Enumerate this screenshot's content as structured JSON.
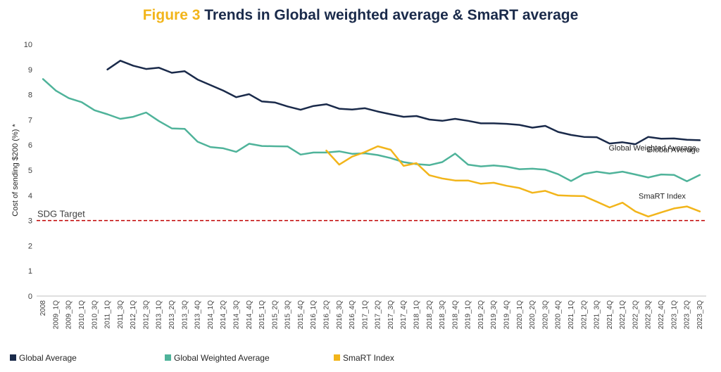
{
  "title": {
    "figure": "Figure 3",
    "text": "Trends in Global weighted average & SmaRT average"
  },
  "chart_data": {
    "type": "line",
    "ylabel": "Cost of sending $200 (%) *",
    "ylim": [
      0,
      10
    ],
    "y_ticks": [
      0,
      1,
      2,
      3,
      4,
      5,
      6,
      7,
      8,
      9,
      10
    ],
    "grid": false,
    "legend_position": "bottom",
    "categories": [
      "2008",
      "2009_1Q",
      "2009_3Q",
      "2010_1Q",
      "2010_3Q",
      "2011_1Q",
      "2011_3Q",
      "2012_1Q",
      "2012_3Q",
      "2013_1Q",
      "2013_2Q",
      "2013_3Q",
      "2013_4Q",
      "2014_1Q",
      "2014_2Q",
      "2014_3Q",
      "2014_4Q",
      "2015_1Q",
      "2015_2Q",
      "2015_3Q",
      "2015_4Q",
      "2016_1Q",
      "2016_2Q",
      "2016_3Q",
      "2016_4Q",
      "2017_1Q",
      "2017_2Q",
      "2017_3Q",
      "2017_4Q",
      "2018_1Q",
      "2018_2Q",
      "2018_3Q",
      "2018_4Q",
      "2019_1Q",
      "2019_2Q",
      "2019_3Q",
      "2019_4Q",
      "2020_1Q",
      "2020_2Q",
      "2020_3Q",
      "2020_4Q",
      "2021_1Q",
      "2021_2Q",
      "2021_3Q",
      "2021_4Q",
      "2022_1Q",
      "2022_2Q",
      "2022_3Q",
      "2022_4Q",
      "2023_1Q",
      "2023_2Q",
      "2023_3Q"
    ],
    "series": [
      {
        "name": "Global Average",
        "color": "#1a2a4a",
        "annotation": "Global Average",
        "values": [
          null,
          null,
          null,
          null,
          null,
          9.0,
          9.35,
          9.15,
          9.02,
          9.07,
          8.87,
          8.93,
          8.6,
          8.38,
          8.16,
          7.9,
          8.02,
          7.73,
          7.69,
          7.53,
          7.4,
          7.55,
          7.62,
          7.44,
          7.41,
          7.46,
          7.33,
          7.22,
          7.12,
          7.15,
          7.01,
          6.96,
          7.04,
          6.96,
          6.86,
          6.86,
          6.84,
          6.8,
          6.69,
          6.76,
          6.52,
          6.4,
          6.32,
          6.31,
          6.06,
          6.11,
          6.03,
          6.32,
          6.25,
          6.26,
          6.21,
          6.19
        ]
      },
      {
        "name": "Global Weighted Average",
        "color": "#4fb39a",
        "annotation": "Global Weighted Average",
        "values": [
          8.62,
          8.16,
          7.86,
          7.7,
          7.38,
          7.22,
          7.04,
          7.12,
          7.29,
          6.95,
          6.66,
          6.64,
          6.13,
          5.92,
          5.87,
          5.73,
          6.05,
          5.96,
          5.95,
          5.94,
          5.62,
          5.7,
          5.7,
          5.75,
          5.65,
          5.67,
          5.6,
          5.48,
          5.32,
          5.24,
          5.2,
          5.32,
          5.66,
          5.22,
          5.15,
          5.19,
          5.14,
          5.04,
          5.06,
          5.02,
          4.84,
          4.57,
          4.85,
          4.94,
          4.87,
          4.94,
          4.83,
          4.71,
          4.83,
          4.81,
          4.56,
          4.81
        ]
      },
      {
        "name": "SmaRT Index",
        "color": "#f2b51b",
        "annotation": "SmaRT Index",
        "values": [
          null,
          null,
          null,
          null,
          null,
          null,
          null,
          null,
          null,
          null,
          null,
          null,
          null,
          null,
          null,
          null,
          null,
          null,
          null,
          null,
          null,
          null,
          5.78,
          5.22,
          5.54,
          5.72,
          5.95,
          5.81,
          5.17,
          5.28,
          4.8,
          4.67,
          4.59,
          4.59,
          4.46,
          4.5,
          4.38,
          4.29,
          4.1,
          4.18,
          4.0,
          3.98,
          3.97,
          3.75,
          3.52,
          3.71,
          3.36,
          3.16,
          3.32,
          3.48,
          3.56,
          3.36
        ]
      }
    ],
    "target": {
      "label": "SDG Target",
      "value": 3,
      "color": "#c00000"
    }
  }
}
